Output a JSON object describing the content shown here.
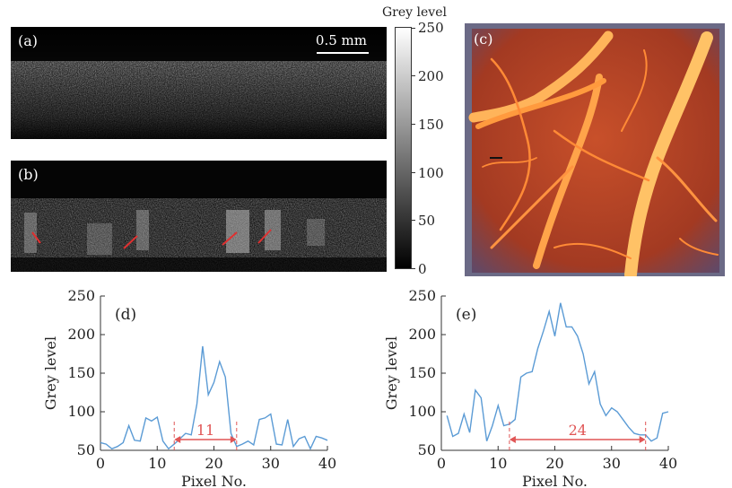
{
  "panel_a": {
    "label": "(a)",
    "scalebar": "0.5 mm"
  },
  "panel_b": {
    "label": "(b)"
  },
  "panel_c": {
    "label": "(c)"
  },
  "colorbar": {
    "title": "Grey level",
    "ticks": [
      "250",
      "200",
      "150",
      "100",
      "50",
      "0"
    ]
  },
  "chart_data": [
    {
      "type": "line",
      "panel": "(d)",
      "xlabel": "Pixel No.",
      "ylabel": "Grey level",
      "xlim": [
        0,
        40
      ],
      "ylim": [
        50,
        250
      ],
      "xticks": [
        "0",
        "10",
        "20",
        "30",
        "40"
      ],
      "yticks": [
        "50",
        "100",
        "150",
        "200",
        "250"
      ],
      "color": "#5b9bd5",
      "x": [
        0,
        1,
        2,
        3,
        4,
        5,
        6,
        7,
        8,
        9,
        10,
        11,
        12,
        13,
        14,
        15,
        16,
        17,
        18,
        19,
        20,
        21,
        22,
        23,
        24,
        25,
        26,
        27,
        28,
        29,
        30,
        31,
        32,
        33,
        34,
        35,
        36,
        37,
        38,
        39,
        40
      ],
      "y": [
        60,
        58,
        52,
        55,
        60,
        82,
        63,
        62,
        92,
        88,
        93,
        62,
        52,
        58,
        65,
        72,
        70,
        110,
        185,
        122,
        138,
        165,
        145,
        72,
        55,
        58,
        62,
        57,
        90,
        92,
        97,
        58,
        57,
        90,
        55,
        65,
        68,
        52,
        68,
        66,
        63
      ],
      "annotation": {
        "text": "11",
        "x_start": 13,
        "x_end": 24,
        "color": "#e05555"
      }
    },
    {
      "type": "line",
      "panel": "(e)",
      "xlabel": "Pixel No.",
      "ylabel": "Grey level",
      "xlim": [
        0,
        40
      ],
      "ylim": [
        50,
        250
      ],
      "xticks": [
        "0",
        "10",
        "20",
        "30",
        "40"
      ],
      "yticks": [
        "50",
        "100",
        "150",
        "200",
        "250"
      ],
      "color": "#5b9bd5",
      "x": [
        1,
        2,
        3,
        4,
        5,
        6,
        7,
        8,
        9,
        10,
        11,
        12,
        13,
        14,
        15,
        16,
        17,
        18,
        19,
        20,
        21,
        22,
        23,
        24,
        25,
        26,
        27,
        28,
        29,
        30,
        31,
        32,
        33,
        34,
        35,
        36,
        37,
        38,
        39,
        40
      ],
      "y": [
        95,
        68,
        72,
        97,
        73,
        128,
        118,
        62,
        82,
        108,
        82,
        84,
        90,
        145,
        150,
        152,
        182,
        205,
        230,
        198,
        241,
        210,
        210,
        198,
        175,
        136,
        152,
        110,
        95,
        105,
        100,
        90,
        80,
        72,
        70,
        70,
        62,
        66,
        98,
        100
      ],
      "annotation": {
        "text": "24",
        "x_start": 12,
        "x_end": 36,
        "color": "#e05555"
      }
    }
  ]
}
